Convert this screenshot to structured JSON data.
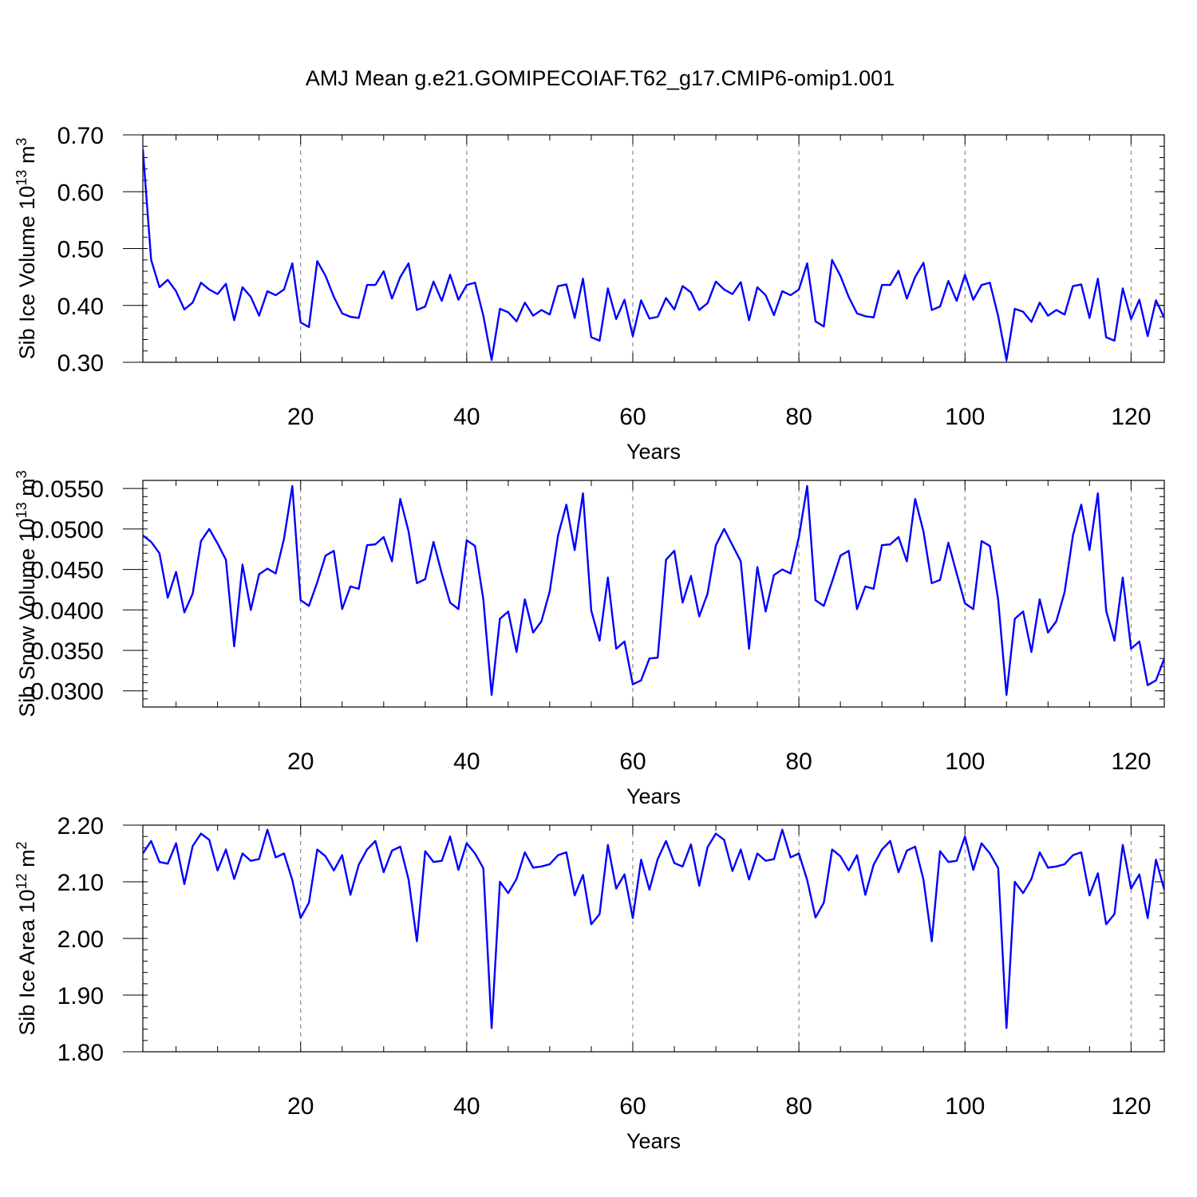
{
  "title": "AMJ Mean g.e21.GOMIPECOIAF.T62_g17.CMIP6-omip1.001",
  "colors": {
    "series": "#0000ff",
    "grid": "#777777"
  },
  "chart_data": [
    {
      "type": "line",
      "xlabel": "Years",
      "ylabel_main": "Sib Ice Volume 10",
      "ylabel_exp": "13",
      "ylabel_tail": " m",
      "ylabel_exp2": "3",
      "xlim": [
        1,
        124
      ],
      "ylim": [
        0.3,
        0.7
      ],
      "yticks": [
        "0.30",
        "0.40",
        "0.50",
        "0.60",
        "0.70"
      ],
      "xticks": [
        "20",
        "40",
        "60",
        "80",
        "100",
        "120"
      ],
      "grid": "vertical dashed at x ticks",
      "series": [
        {
          "x_start": 1,
          "values": [
            0.675,
            0.48,
            0.432,
            0.445,
            0.425,
            0.393,
            0.405,
            0.44,
            0.428,
            0.42,
            0.438,
            0.374,
            0.432,
            0.415,
            0.382,
            0.425,
            0.418,
            0.428,
            0.474,
            0.37,
            0.362,
            0.478,
            0.452,
            0.415,
            0.386,
            0.38,
            0.378,
            0.436,
            0.436,
            0.46,
            0.412,
            0.45,
            0.474,
            0.392,
            0.398,
            0.442,
            0.408,
            0.454,
            0.41,
            0.436,
            0.44,
            0.382,
            0.304,
            0.394,
            0.388,
            0.372,
            0.405,
            0.382,
            0.392,
            0.384,
            0.434,
            0.437,
            0.378,
            0.447,
            0.344,
            0.338,
            0.43,
            0.376,
            0.41,
            0.346,
            0.409,
            0.377,
            0.38,
            0.413,
            0.393,
            0.434,
            0.423,
            0.392,
            0.404,
            0.442,
            0.428,
            0.42,
            0.441,
            0.374,
            0.432,
            0.418,
            0.383,
            0.425,
            0.418,
            0.428,
            0.474,
            0.372,
            0.363,
            0.48,
            0.452,
            0.415,
            0.386,
            0.381,
            0.379,
            0.436,
            0.436,
            0.461,
            0.412,
            0.45,
            0.475,
            0.392,
            0.398,
            0.443,
            0.408,
            0.454,
            0.41,
            0.436,
            0.44,
            0.381,
            0.304,
            0.394,
            0.389,
            0.371,
            0.405,
            0.382,
            0.392,
            0.384,
            0.434,
            0.437,
            0.378,
            0.447,
            0.344,
            0.338,
            0.43,
            0.376,
            0.41,
            0.346,
            0.409,
            0.378
          ]
        }
      ]
    },
    {
      "type": "line",
      "xlabel": "Years",
      "ylabel_main": "Sib Snow Volume 10",
      "ylabel_exp": "13",
      "ylabel_tail": " m",
      "ylabel_exp2": "3",
      "xlim": [
        1,
        124
      ],
      "ylim": [
        0.028,
        0.056
      ],
      "yticks": [
        "0.0300",
        "0.0350",
        "0.0400",
        "0.0450",
        "0.0500",
        "0.0550"
      ],
      "ytick_values": [
        0.03,
        0.035,
        0.04,
        0.045,
        0.05,
        0.055
      ],
      "xticks": [
        "20",
        "40",
        "60",
        "80",
        "100",
        "120"
      ],
      "grid": "vertical dashed at x ticks",
      "series": [
        {
          "x_start": 1,
          "values": [
            0.0492,
            0.0484,
            0.047,
            0.0415,
            0.0447,
            0.0397,
            0.042,
            0.0485,
            0.05,
            0.0482,
            0.0462,
            0.0355,
            0.0456,
            0.04,
            0.0444,
            0.0451,
            0.0445,
            0.0488,
            0.0553,
            0.0412,
            0.0405,
            0.0434,
            0.0467,
            0.0473,
            0.0401,
            0.0429,
            0.0426,
            0.048,
            0.0481,
            0.049,
            0.046,
            0.0537,
            0.0497,
            0.0433,
            0.0438,
            0.0484,
            0.0445,
            0.0409,
            0.0401,
            0.0486,
            0.0479,
            0.0413,
            0.0295,
            0.0389,
            0.0398,
            0.0348,
            0.0413,
            0.0372,
            0.0386,
            0.0423,
            0.0492,
            0.053,
            0.0474,
            0.0544,
            0.0399,
            0.0362,
            0.044,
            0.0352,
            0.0361,
            0.0308,
            0.0313,
            0.034,
            0.0341,
            0.0462,
            0.0473,
            0.0409,
            0.0442,
            0.0392,
            0.042,
            0.048,
            0.05,
            0.048,
            0.046,
            0.0352,
            0.0453,
            0.0398,
            0.0443,
            0.045,
            0.0445,
            0.049,
            0.0553,
            0.0412,
            0.0405,
            0.0435,
            0.0467,
            0.0473,
            0.0401,
            0.0429,
            0.0426,
            0.048,
            0.0481,
            0.049,
            0.046,
            0.0537,
            0.0497,
            0.0433,
            0.0437,
            0.0483,
            0.0445,
            0.0408,
            0.0401,
            0.0485,
            0.0479,
            0.0412,
            0.0295,
            0.0389,
            0.0398,
            0.0348,
            0.0413,
            0.0372,
            0.0386,
            0.0422,
            0.0492,
            0.053,
            0.0474,
            0.0544,
            0.0399,
            0.0362,
            0.044,
            0.0352,
            0.0361,
            0.0307,
            0.0313,
            0.034
          ]
        }
      ]
    },
    {
      "type": "line",
      "xlabel": "Years",
      "ylabel_main": "Sib Ice Area 10",
      "ylabel_exp": "12",
      "ylabel_tail": " m",
      "ylabel_exp2": "2",
      "xlim": [
        1,
        124
      ],
      "ylim": [
        1.8,
        2.2
      ],
      "yticks": [
        "1.80",
        "1.90",
        "2.00",
        "2.10",
        "2.20"
      ],
      "xticks": [
        "20",
        "40",
        "60",
        "80",
        "100",
        "120"
      ],
      "grid": "vertical dashed at x ticks",
      "series": [
        {
          "x_start": 1,
          "values": [
            2.15,
            2.172,
            2.135,
            2.132,
            2.168,
            2.096,
            2.163,
            2.185,
            2.174,
            2.12,
            2.157,
            2.105,
            2.15,
            2.137,
            2.14,
            2.192,
            2.143,
            2.15,
            2.103,
            2.036,
            2.063,
            2.157,
            2.145,
            2.12,
            2.147,
            2.077,
            2.13,
            2.157,
            2.172,
            2.117,
            2.155,
            2.162,
            2.104,
            1.995,
            2.154,
            2.135,
            2.137,
            2.18,
            2.121,
            2.168,
            2.15,
            2.124,
            1.842,
            2.1,
            2.08,
            2.105,
            2.152,
            2.125,
            2.127,
            2.131,
            2.147,
            2.152,
            2.076,
            2.112,
            2.025,
            2.043,
            2.165,
            2.088,
            2.113,
            2.036,
            2.139,
            2.086,
            2.14,
            2.172,
            2.133,
            2.127,
            2.166,
            2.093,
            2.161,
            2.185,
            2.174,
            2.119,
            2.157,
            2.104,
            2.15,
            2.137,
            2.14,
            2.192,
            2.143,
            2.15,
            2.103,
            2.037,
            2.063,
            2.157,
            2.145,
            2.12,
            2.147,
            2.077,
            2.13,
            2.157,
            2.172,
            2.117,
            2.155,
            2.162,
            2.104,
            1.995,
            2.154,
            2.135,
            2.137,
            2.18,
            2.121,
            2.168,
            2.15,
            2.124,
            1.842,
            2.1,
            2.08,
            2.105,
            2.152,
            2.125,
            2.127,
            2.131,
            2.147,
            2.152,
            2.076,
            2.115,
            2.025,
            2.043,
            2.165,
            2.088,
            2.113,
            2.036,
            2.139,
            2.086
          ]
        }
      ]
    }
  ]
}
